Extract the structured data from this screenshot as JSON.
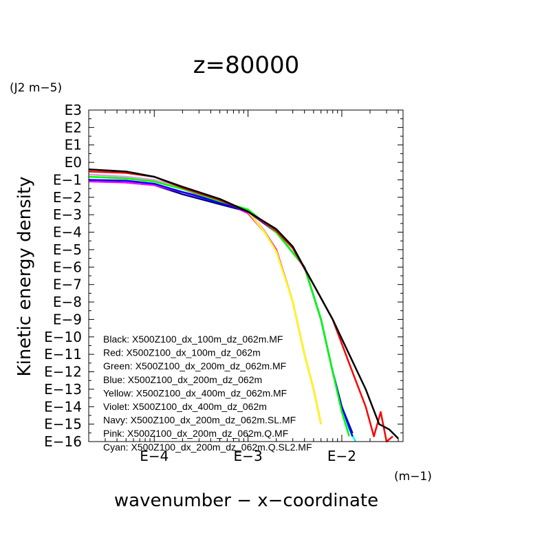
{
  "chart_data": {
    "type": "line",
    "title": "z=80000",
    "xlabel": "wavenumber − x−coordinate",
    "ylabel": "Kinetic energy density",
    "x_unit": "(m−1)",
    "y_unit": "(J2 m−5)",
    "x_scale": "log",
    "y_scale": "log",
    "xlim": [
      2e-05,
      0.045
    ],
    "ylim": [
      1e-16,
      1000
    ],
    "x_ticks": [
      {
        "value": 0.0001,
        "label": "E−4"
      },
      {
        "value": 0.001,
        "label": "E−3"
      },
      {
        "value": 0.01,
        "label": "E−2"
      }
    ],
    "y_ticks": [
      {
        "value": 1000.0,
        "label": "E3"
      },
      {
        "value": 100.0,
        "label": "E2"
      },
      {
        "value": 10.0,
        "label": "E1"
      },
      {
        "value": 1.0,
        "label": "E0"
      },
      {
        "value": 0.1,
        "label": "E−1"
      },
      {
        "value": 0.01,
        "label": "E−2"
      },
      {
        "value": 0.001,
        "label": "E−3"
      },
      {
        "value": 0.0001,
        "label": "E−4"
      },
      {
        "value": 1e-05,
        "label": "E−5"
      },
      {
        "value": 1e-06,
        "label": "E−6"
      },
      {
        "value": 1e-07,
        "label": "E−7"
      },
      {
        "value": 1e-08,
        "label": "E−8"
      },
      {
        "value": 1e-09,
        "label": "E−9"
      },
      {
        "value": 1e-10,
        "label": "E−10"
      },
      {
        "value": 1e-11,
        "label": "E−11"
      },
      {
        "value": 1e-12,
        "label": "E−12"
      },
      {
        "value": 1e-13,
        "label": "E−13"
      },
      {
        "value": 1e-14,
        "label": "E−14"
      },
      {
        "value": 1e-15,
        "label": "E−15"
      },
      {
        "value": 1e-16,
        "label": "E−16"
      }
    ],
    "legend_position": "bottom-left",
    "series": [
      {
        "name": "Black: X500Z100_dx_100m_dz_062m.MF",
        "color": "#000000",
        "x": [
          2e-05,
          5e-05,
          0.0001,
          0.0002,
          0.0005,
          0.001,
          0.002,
          0.003,
          0.005,
          0.008,
          0.012,
          0.018,
          0.025,
          0.032,
          0.04
        ],
        "y": [
          0.4,
          0.3,
          0.15,
          0.04,
          0.008,
          0.0015,
          0.00015,
          1.5e-05,
          1e-07,
          1e-09,
          1e-11,
          1e-13,
          1e-15,
          5e-16,
          1.5e-16
        ]
      },
      {
        "name": "Red: X500Z100_dx_100m_dz_062m",
        "color": "#ff0000",
        "x": [
          2e-05,
          5e-05,
          0.0001,
          0.0002,
          0.0005,
          0.001,
          0.002,
          0.003,
          0.005,
          0.008,
          0.012,
          0.018,
          0.022,
          0.026,
          0.03,
          0.035
        ],
        "y": [
          0.3,
          0.25,
          0.15,
          0.035,
          0.007,
          0.0015,
          0.00012,
          1.2e-05,
          1e-07,
          1e-09,
          3e-12,
          1e-14,
          2e-16,
          5e-15,
          1e-16,
          2e-16
        ]
      },
      {
        "name": "Green: X500Z100_dx_200m_dz_062m.MF",
        "color": "#00ff00",
        "x": [
          2e-05,
          5e-05,
          0.0001,
          0.0002,
          0.0005,
          0.001,
          0.002,
          0.004,
          0.006,
          0.008,
          0.01,
          0.012
        ],
        "y": [
          0.15,
          0.12,
          0.08,
          0.03,
          0.006,
          0.002,
          0.0001,
          1e-06,
          1e-09,
          1e-12,
          5e-15,
          2e-16
        ]
      },
      {
        "name": "Blue: X500Z100_dx_200m_dz_062m",
        "color": "#0000ff",
        "x": [
          2e-05,
          5e-05,
          0.0001,
          0.0002,
          0.0005,
          0.001,
          0.002,
          0.004,
          0.006,
          0.008,
          0.01,
          0.013
        ],
        "y": [
          0.1,
          0.09,
          0.06,
          0.02,
          0.005,
          0.0015,
          0.0001,
          1e-06,
          1e-09,
          1e-12,
          1e-14,
          2e-16
        ]
      },
      {
        "name": "Yellow: X500Z100_dx_400m_dz_062m.MF",
        "color": "#ffff00",
        "x": [
          2e-05,
          5e-05,
          0.0001,
          0.0002,
          0.0005,
          0.001,
          0.0015,
          0.002,
          0.003,
          0.004,
          0.005,
          0.006
        ],
        "y": [
          0.15,
          0.12,
          0.08,
          0.03,
          0.008,
          0.0015,
          0.0001,
          8e-06,
          1e-08,
          1e-11,
          1e-13,
          1e-15
        ]
      },
      {
        "name": "Violet: X500Z100_dx_400m_dz_062m",
        "color": "#ff00ff",
        "x": [
          2e-05,
          5e-05,
          0.0001,
          0.0002,
          0.0005,
          0.001,
          0.0015,
          0.002,
          0.003,
          0.004,
          0.005,
          0.006
        ],
        "y": [
          0.08,
          0.07,
          0.05,
          0.02,
          0.007,
          0.0012,
          0.0001,
          1e-05,
          1e-08,
          1e-11,
          1e-13,
          1e-15
        ]
      },
      {
        "name": "Navy: X500Z100_dx_200m_dz_062m.SL.MF",
        "color": "#000080",
        "x": [
          2e-05,
          5e-05,
          0.0001,
          0.0002,
          0.0005,
          0.001,
          0.002,
          0.004,
          0.006,
          0.008,
          0.01,
          0.013
        ],
        "y": [
          0.1,
          0.07,
          0.05,
          0.015,
          0.004,
          0.0015,
          0.0001,
          1e-06,
          1e-09,
          1e-12,
          1e-14,
          3e-16
        ]
      },
      {
        "name": "Pink: X500Z100_dx_200m_dz_062m.Q.MF",
        "color": "#dda0dd",
        "x": [
          2e-05,
          5e-05,
          0.0001,
          0.0002,
          0.0005,
          0.001,
          0.0015,
          0.002,
          0.003,
          0.004,
          0.005,
          0.006
        ],
        "y": [
          0.2,
          0.15,
          0.1,
          0.04,
          0.008,
          0.0015,
          0.00012,
          1e-05,
          1e-08,
          1e-11,
          1e-13,
          1e-15
        ]
      },
      {
        "name": "Cyan: X500Z100_dx_200m_dz_062m.Q.SL2.MF",
        "color": "#00ffff",
        "x": [
          2e-05,
          5e-05,
          0.0001,
          0.0002,
          0.0005,
          0.001,
          0.002,
          0.004,
          0.006,
          0.008,
          0.01,
          0.012,
          0.014
        ],
        "y": [
          0.2,
          0.15,
          0.1,
          0.03,
          0.006,
          0.0015,
          0.0001,
          1e-06,
          1e-09,
          1e-12,
          1e-14,
          5e-16,
          1e-16
        ]
      }
    ]
  }
}
